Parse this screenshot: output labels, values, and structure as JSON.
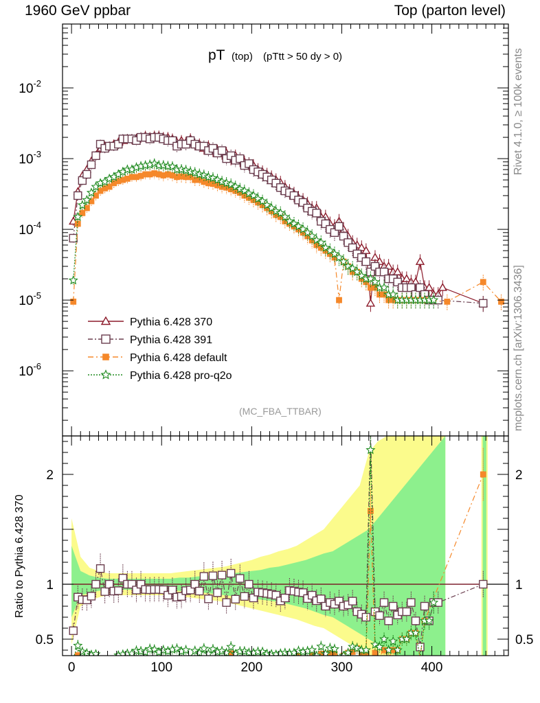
{
  "header": {
    "left": "1960 GeV ppbar",
    "right": "Top (parton level)"
  },
  "side_labels": {
    "right_top": "Rivet 4.1.0, ≥ 100k events",
    "right_bottom": "mcplots.cern.ch [arXiv:1306.3436]"
  },
  "chart_data": {
    "type": "line",
    "title": "pT",
    "title_sub": "(top)",
    "title_cut": "(pTtt > 50 dy > 0)",
    "analysis": "(MC_FBA_TTBAR)",
    "xlabel": "",
    "xlim": [
      -10,
      485
    ],
    "xticks": [
      "0",
      "100",
      "200",
      "300",
      "400"
    ],
    "main_yscale": "log",
    "main_ylim": [
      1.2e-07,
      0.08
    ],
    "main_yticks": [
      "10^-6",
      "10^-5",
      "10^-4",
      "10^-3",
      "10^-2"
    ],
    "ratio_ylabel": "Ratio to Pythia 6.428 370",
    "ratio_ylim": [
      0.35,
      2.35
    ],
    "ratio_yticks": [
      "0.5",
      "1",
      "2"
    ],
    "x": [
      2,
      7,
      12,
      17,
      22,
      27,
      32,
      37,
      42,
      47,
      52,
      57,
      62,
      67,
      72,
      77,
      82,
      87,
      92,
      97,
      102,
      107,
      112,
      117,
      122,
      127,
      132,
      137,
      142,
      147,
      152,
      157,
      162,
      167,
      172,
      177,
      182,
      187,
      192,
      197,
      202,
      207,
      212,
      217,
      222,
      227,
      232,
      237,
      242,
      247,
      252,
      257,
      262,
      267,
      272,
      277,
      282,
      287,
      292,
      297,
      302,
      307,
      312,
      317,
      322,
      327,
      332,
      337,
      342,
      347,
      352,
      357,
      362,
      367,
      372,
      377,
      382,
      387,
      392,
      397,
      402,
      407,
      412,
      417,
      422,
      427,
      432,
      437,
      442,
      447,
      452,
      457,
      462,
      467,
      472,
      477
    ],
    "series": [
      {
        "name": "Pythia 6.428 370",
        "color": "#8b1a2a",
        "marker": "triangle",
        "values": [
          0.00013,
          0.00034,
          0.00057,
          0.0007,
          0.00092,
          0.0011,
          0.0014,
          0.0015,
          0.0015,
          0.0016,
          0.0017,
          0.0018,
          0.0019,
          0.0019,
          0.0019,
          0.002,
          0.0021,
          0.002,
          0.0021,
          0.0021,
          0.002,
          0.002,
          0.0019,
          0.0017,
          0.0018,
          0.0017,
          0.0019,
          0.0016,
          0.0016,
          0.0014,
          0.0015,
          0.0013,
          0.0013,
          0.0012,
          0.0012,
          0.001,
          0.0011,
          0.00095,
          0.0009,
          0.00085,
          0.0008,
          0.0007,
          0.00065,
          0.0006,
          0.00055,
          0.0005,
          0.00046,
          0.0004,
          0.00035,
          0.00032,
          0.00028,
          0.00026,
          0.00023,
          0.0002,
          0.0002,
          0.00015,
          0.00015,
          0.00012,
          0.00011,
          0.00013,
          0.0001,
          8e-05,
          6.5e-05,
          6e-05,
          5.5e-05,
          5e-05,
          9e-06,
          4e-05,
          3.5e-05,
          3e-05,
          3e-05,
          2.5e-05,
          2.5e-05,
          2e-05,
          2e-05,
          1.8e-05,
          1.8e-05,
          3.5e-05,
          1.5e-05,
          1.5e-05,
          1.2e-05,
          1.2e-05,
          1.5e-05,
          null,
          null,
          null,
          null,
          null,
          null,
          null,
          null,
          9e-06,
          null,
          null,
          null,
          null
        ]
      },
      {
        "name": "Pythia 6.428 391",
        "color": "#6a3d4e",
        "marker": "square",
        "values": [
          7.5e-05,
          0.0003,
          0.00049,
          0.0006,
          0.00082,
          0.0011,
          0.0016,
          0.0014,
          0.0015,
          0.0015,
          0.0016,
          0.0019,
          0.0019,
          0.0019,
          0.0018,
          0.002,
          0.002,
          0.0019,
          0.002,
          0.002,
          0.0019,
          0.0018,
          0.0018,
          0.0015,
          0.0016,
          0.0016,
          0.0018,
          0.0016,
          0.0015,
          0.0015,
          0.0013,
          0.0014,
          0.0012,
          0.0013,
          0.001,
          0.0011,
          0.00095,
          0.001,
          0.0008,
          0.00085,
          0.0007,
          0.00065,
          0.0006,
          0.00055,
          0.0005,
          0.00045,
          0.00039,
          0.00035,
          0.00033,
          0.0003,
          0.00026,
          0.00024,
          0.0002,
          0.00018,
          0.00017,
          0.00013,
          0.00012,
          0.0001,
          9e-05,
          0.00011,
          8e-05,
          6.5e-05,
          5.5e-05,
          4.5e-05,
          4e-05,
          3.5e-05,
          2.5e-05,
          3e-05,
          2.5e-05,
          2.5e-05,
          2e-05,
          2e-05,
          1.8e-05,
          1.5e-05,
          1.5e-05,
          1.5e-05,
          1.2e-05,
          1.5e-05,
          1.2e-05,
          1e-05,
          1e-05,
          1e-05,
          null,
          null,
          null,
          null,
          null,
          null,
          null,
          null,
          null,
          9e-06,
          null,
          null,
          null,
          null
        ]
      },
      {
        "name": "Pythia 6.428 default",
        "color": "#f5882a",
        "marker": "filled-square",
        "values": [
          9.5e-06,
          0.00012,
          0.00017,
          0.0002,
          0.00025,
          0.0003,
          0.00035,
          0.00038,
          0.0004,
          0.00045,
          0.00048,
          0.0005,
          0.00052,
          0.00055,
          0.00055,
          0.00057,
          0.0006,
          0.0006,
          0.00062,
          0.0006,
          0.00058,
          0.0006,
          0.00058,
          0.00055,
          0.00056,
          0.00055,
          0.00055,
          0.0005,
          0.0005,
          0.00047,
          0.00045,
          0.00044,
          0.00042,
          0.0004,
          0.00039,
          0.00037,
          0.00035,
          0.00033,
          0.0003,
          0.00028,
          0.00026,
          0.00024,
          0.00022,
          0.0002,
          0.00018,
          0.00016,
          0.00015,
          0.00013,
          0.00012,
          0.00011,
          0.0001,
          9e-05,
          8e-05,
          7e-05,
          6e-05,
          5.5e-05,
          5e-05,
          4.5e-05,
          4e-05,
          1e-05,
          3.5e-05,
          3e-05,
          2.5e-05,
          2.5e-05,
          2e-05,
          1.8e-05,
          1.5e-05,
          1.5e-05,
          1.2e-05,
          1.2e-05,
          1e-05,
          1e-05,
          1e-05,
          1e-05,
          1e-05,
          1e-05,
          1e-05,
          1e-05,
          1e-05,
          null,
          null,
          null,
          null,
          9.5e-06,
          null,
          null,
          null,
          null,
          null,
          null,
          null,
          1.8e-05,
          null,
          null,
          null,
          9.5e-06
        ]
      },
      {
        "name": "Pythia 6.428 pro-q2o",
        "color": "#1f8a1f",
        "marker": "star",
        "values": [
          1.9e-05,
          0.00015,
          0.00022,
          0.00026,
          0.00033,
          0.0004,
          0.00045,
          0.00047,
          0.00052,
          0.00055,
          0.0006,
          0.00065,
          0.0007,
          0.0007,
          0.00075,
          0.00078,
          0.0008,
          0.00082,
          0.00085,
          0.0008,
          0.0008,
          0.00078,
          0.00077,
          0.0007,
          0.0007,
          0.00068,
          0.00065,
          0.00063,
          0.0006,
          0.00058,
          0.00055,
          0.00053,
          0.0005,
          0.00047,
          0.00045,
          0.00043,
          0.0004,
          0.00037,
          0.00035,
          0.00032,
          0.0003,
          0.00027,
          0.00025,
          0.00022,
          0.0002,
          0.00018,
          0.00017,
          0.00015,
          0.00013,
          0.00012,
          0.00011,
          0.0001,
          9e-05,
          8e-05,
          7e-05,
          6.5e-05,
          5.5e-05,
          5e-05,
          4.5e-05,
          4e-05,
          3.5e-05,
          3e-05,
          2.8e-05,
          2.5e-05,
          2.2e-05,
          2e-05,
          2e-05,
          1.8e-05,
          1.5e-05,
          1.5e-05,
          1.2e-05,
          1.2e-05,
          1e-05,
          1e-05,
          1e-05,
          1e-05,
          1e-05,
          1e-05,
          1e-05,
          1e-05,
          1e-05,
          null,
          null,
          null,
          null,
          null,
          null,
          null,
          null,
          null,
          null,
          null,
          null,
          null,
          null,
          null
        ]
      }
    ],
    "ratio_band_x": [
      0,
      10,
      20,
      30,
      40,
      50,
      60,
      70,
      80,
      90,
      100,
      110,
      120,
      130,
      140,
      150,
      160,
      170,
      180,
      190,
      200,
      210,
      220,
      230,
      240,
      250,
      260,
      270,
      280,
      290,
      300,
      310,
      320,
      330,
      340,
      350,
      360,
      370,
      380,
      390,
      400,
      410,
      415
    ],
    "ratio_band_yellow_lo": [
      0.45,
      0.8,
      0.85,
      0.88,
      0.9,
      0.9,
      0.9,
      0.9,
      0.9,
      0.9,
      0.9,
      0.9,
      0.89,
      0.88,
      0.87,
      0.86,
      0.85,
      0.84,
      0.82,
      0.8,
      0.78,
      0.76,
      0.74,
      0.72,
      0.7,
      0.68,
      0.65,
      0.62,
      0.6,
      0.55,
      0.5,
      0.45,
      0.4,
      0.35,
      0.35,
      0.35,
      0.35,
      0.35,
      0.35,
      0.35,
      0.35,
      0.35,
      0.35
    ],
    "ratio_band_yellow_hi": [
      1.6,
      1.25,
      1.15,
      1.12,
      1.1,
      1.1,
      1.1,
      1.1,
      1.1,
      1.1,
      1.1,
      1.1,
      1.11,
      1.12,
      1.13,
      1.14,
      1.15,
      1.16,
      1.18,
      1.2,
      1.22,
      1.25,
      1.27,
      1.3,
      1.32,
      1.35,
      1.4,
      1.45,
      1.5,
      1.6,
      1.7,
      1.8,
      1.9,
      2.2,
      2.3,
      2.35,
      2.35,
      2.35,
      2.35,
      2.35,
      2.35,
      2.35,
      2.35
    ],
    "ratio_band_green_lo": [
      0.7,
      0.9,
      0.92,
      0.94,
      0.95,
      0.95,
      0.95,
      0.95,
      0.95,
      0.95,
      0.95,
      0.95,
      0.94,
      0.93,
      0.93,
      0.92,
      0.91,
      0.9,
      0.89,
      0.88,
      0.87,
      0.86,
      0.85,
      0.84,
      0.82,
      0.8,
      0.78,
      0.75,
      0.72,
      0.7,
      0.65,
      0.6,
      0.55,
      0.5,
      0.45,
      0.4,
      0.35,
      0.35,
      0.35,
      0.35,
      0.35,
      0.35,
      0.35
    ],
    "ratio_band_green_hi": [
      1.35,
      1.12,
      1.08,
      1.06,
      1.05,
      1.05,
      1.05,
      1.05,
      1.05,
      1.05,
      1.05,
      1.05,
      1.06,
      1.06,
      1.07,
      1.08,
      1.08,
      1.09,
      1.1,
      1.11,
      1.12,
      1.13,
      1.15,
      1.16,
      1.18,
      1.2,
      1.22,
      1.25,
      1.28,
      1.3,
      1.35,
      1.4,
      1.45,
      1.5,
      1.6,
      1.7,
      1.8,
      1.9,
      2.0,
      2.1,
      2.2,
      2.3,
      2.35
    ]
  }
}
